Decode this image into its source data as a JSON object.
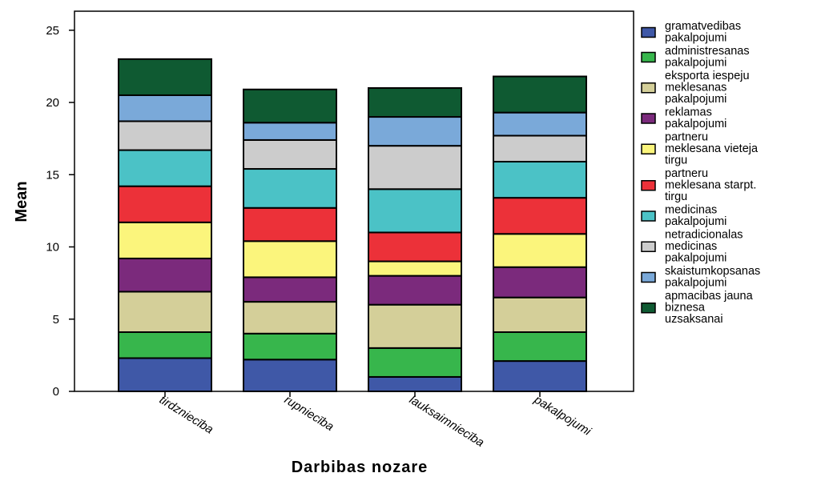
{
  "chart_data": {
    "type": "bar",
    "stacked": true,
    "xlabel": "Darbibas nozare",
    "ylabel": "Mean",
    "ylim": [
      0,
      25
    ],
    "yticks": [
      0,
      5,
      10,
      15,
      20,
      25
    ],
    "categories": [
      "tirdzniecība",
      "rupniecība",
      "lauksaimniecība",
      "pakalpojumi"
    ],
    "series": [
      {
        "name": "gramatvedibas pakalpojumi",
        "color": "#3f58a7",
        "values": [
          2.3,
          2.2,
          1.0,
          2.1
        ]
      },
      {
        "name": "administresanas pakalpojumi",
        "color": "#37b64c",
        "values": [
          1.8,
          1.8,
          2.0,
          2.0
        ]
      },
      {
        "name": "eksporta iespeju meklesanas pakalpojumi",
        "color": "#d4cf99",
        "values": [
          2.8,
          2.2,
          3.0,
          2.4
        ]
      },
      {
        "name": "reklamas pakalpojumi",
        "color": "#7b2a7c",
        "values": [
          2.3,
          1.7,
          2.0,
          2.1
        ]
      },
      {
        "name": "partneru meklesana vieteja tirgu",
        "color": "#fbf57c",
        "values": [
          2.5,
          2.5,
          1.0,
          2.3
        ]
      },
      {
        "name": "partneru meklesana starpt. tirgu",
        "color": "#ec3139",
        "values": [
          2.5,
          2.3,
          2.0,
          2.5
        ]
      },
      {
        "name": "medicinas pakalpojumi",
        "color": "#4bc2c6",
        "values": [
          2.5,
          2.7,
          3.0,
          2.5
        ]
      },
      {
        "name": "netradicionalas medicinas pakalpojumi",
        "color": "#cccccc",
        "values": [
          2.0,
          2.0,
          3.0,
          1.8
        ]
      },
      {
        "name": "skaistumkopsanas pakalpojumi",
        "color": "#7aa9d9",
        "values": [
          1.8,
          1.2,
          2.0,
          1.6
        ]
      },
      {
        "name": "apmacibas jauna biznesa uzsaksanai",
        "color": "#0f5a32",
        "values": [
          2.5,
          2.3,
          2.0,
          2.5
        ]
      }
    ],
    "legend_position": "right",
    "grid": false
  },
  "legend_lines": [
    [
      "gramatvedibas",
      "pakalpojumi"
    ],
    [
      "administresanas",
      "pakalpojumi"
    ],
    [
      "eksporta iespeju",
      "meklesanas",
      "pakalpojumi"
    ],
    [
      "reklamas",
      "pakalpojumi"
    ],
    [
      "partneru",
      "meklesana vieteja",
      "tirgu"
    ],
    [
      "partneru",
      "meklesana starpt.",
      "tirgu"
    ],
    [
      "medicinas",
      "pakalpojumi"
    ],
    [
      "netradicionalas",
      "medicinas",
      "pakalpojumi"
    ],
    [
      "skaistumkopsanas",
      "pakalpojumi"
    ],
    [
      "apmacibas jauna",
      "biznesa",
      "uzsaksanai"
    ]
  ],
  "category_labels": [
    "tirdzniecība",
    "rupniecība",
    "lauksaimniecība",
    "pakalpojumi"
  ]
}
